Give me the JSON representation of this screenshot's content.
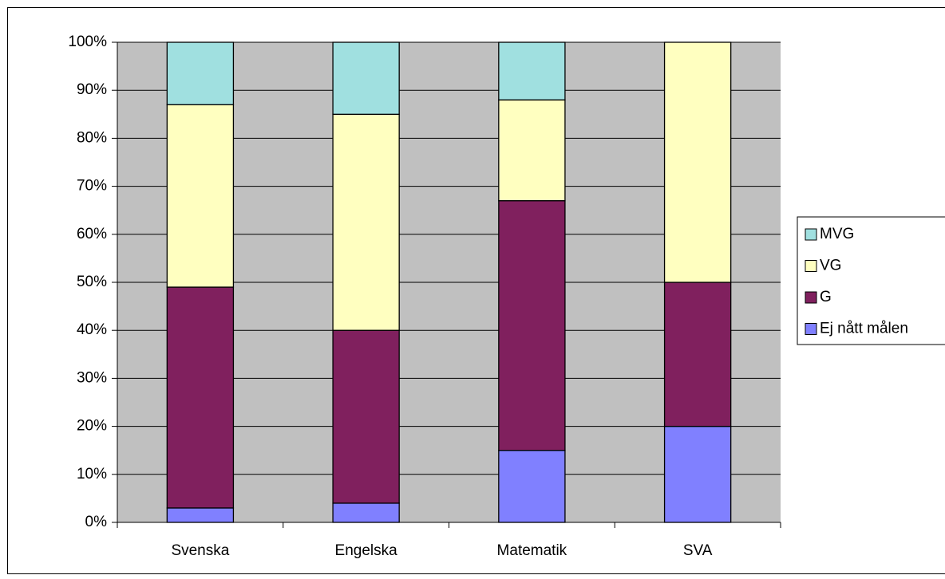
{
  "chart_data": {
    "type": "stacked_bar",
    "categories": [
      "Svenska",
      "Engelska",
      "Matematik",
      "SVA"
    ],
    "series": [
      {
        "name": "Ej nått målen",
        "color": "#8080ff",
        "values": [
          3,
          4,
          15,
          20
        ]
      },
      {
        "name": "G",
        "color": "#80205e",
        "values": [
          46,
          36,
          52,
          30
        ]
      },
      {
        "name": "VG",
        "color": "#ffffc0",
        "values": [
          38,
          45,
          21,
          50
        ]
      },
      {
        "name": "MVG",
        "color": "#a0e0e0",
        "values": [
          13,
          15,
          12,
          0
        ]
      }
    ],
    "ylim": [
      0,
      100
    ],
    "yticks": [
      {
        "value": 0,
        "label": "0%"
      },
      {
        "value": 10,
        "label": "10%"
      },
      {
        "value": 20,
        "label": "20%"
      },
      {
        "value": 30,
        "label": "30%"
      },
      {
        "value": 40,
        "label": "40%"
      },
      {
        "value": 50,
        "label": "50%"
      },
      {
        "value": 60,
        "label": "60%"
      },
      {
        "value": 70,
        "label": "70%"
      },
      {
        "value": 80,
        "label": "80%"
      },
      {
        "value": 90,
        "label": "90%"
      },
      {
        "value": 100,
        "label": "100%"
      }
    ],
    "grid": true,
    "legend": "right"
  }
}
